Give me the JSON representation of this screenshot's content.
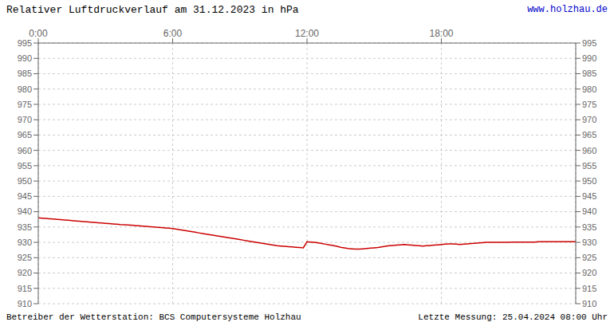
{
  "chart_data": {
    "type": "line",
    "title": "Relativer Luftdruckverlauf am 31.12.2023 in hPa",
    "annotations": [
      "www.holzhau.de",
      "Betreiber der Wetterstation: BCS Computersysteme Holzhau",
      "Letzte Messung: 25.04.2024 08:00 Uhr"
    ],
    "x": [
      0,
      10,
      20,
      30,
      40,
      50,
      60,
      70,
      80,
      90,
      100,
      110,
      120,
      130,
      140,
      150,
      160,
      170,
      180,
      190,
      200,
      210,
      220,
      230,
      240,
      250,
      260,
      270,
      280,
      290,
      300,
      310,
      320,
      330,
      340,
      350,
      360,
      370,
      380,
      390,
      400,
      410,
      420,
      430,
      440,
      450,
      460,
      470,
      480,
      490,
      500,
      510,
      520,
      530,
      540,
      550,
      560,
      570,
      580,
      590,
      600,
      610,
      620,
      630,
      640,
      650,
      660,
      670,
      680,
      690,
      700,
      710,
      720,
      730,
      740,
      750,
      760,
      770,
      780,
      790,
      800,
      810,
      820,
      830,
      840,
      850,
      860,
      870,
      880,
      890,
      900,
      910,
      920,
      930,
      940,
      950,
      960,
      970,
      980,
      990,
      1000,
      1010,
      1020,
      1030,
      1040,
      1050,
      1060,
      1070,
      1080,
      1090,
      1100,
      1110,
      1120,
      1130,
      1140,
      1150,
      1160,
      1170,
      1180,
      1190,
      1200,
      1210,
      1220,
      1230,
      1240,
      1250,
      1260,
      1270,
      1280,
      1290,
      1300,
      1310,
      1320,
      1330,
      1340,
      1350,
      1360,
      1370,
      1380,
      1390,
      1400,
      1410,
      1420,
      1430,
      1440
    ],
    "values": [
      938.0,
      937.9,
      937.8,
      937.7,
      937.6,
      937.5,
      937.4,
      937.3,
      937.2,
      937.1,
      937.0,
      936.9,
      936.8,
      936.7,
      936.6,
      936.5,
      936.4,
      936.3,
      936.2,
      936.1,
      936.0,
      935.9,
      935.8,
      935.75,
      935.7,
      935.6,
      935.5,
      935.4,
      935.3,
      935.2,
      935.1,
      935.0,
      934.9,
      934.8,
      934.7,
      934.6,
      934.5,
      934.3,
      934.1,
      933.9,
      933.7,
      933.5,
      933.3,
      933.1,
      932.9,
      932.7,
      932.5,
      932.3,
      932.1,
      931.9,
      931.7,
      931.5,
      931.3,
      931.1,
      930.9,
      930.7,
      930.5,
      930.3,
      930.1,
      929.9,
      929.7,
      929.5,
      929.3,
      929.1,
      928.9,
      928.8,
      928.7,
      928.6,
      928.5,
      928.4,
      928.3,
      928.2,
      930.2,
      930.1,
      930.0,
      929.8,
      929.6,
      929.4,
      929.2,
      929.0,
      928.7,
      928.4,
      928.2,
      928.0,
      927.9,
      927.8,
      927.8,
      927.9,
      928.0,
      928.1,
      928.2,
      928.3,
      928.5,
      928.7,
      928.9,
      929.0,
      929.1,
      929.2,
      929.3,
      929.2,
      929.1,
      929.0,
      928.9,
      928.8,
      928.9,
      929.0,
      929.1,
      929.2,
      929.3,
      929.4,
      929.5,
      929.5,
      929.4,
      929.3,
      929.4,
      929.5,
      929.6,
      929.7,
      929.8,
      929.9,
      930.0,
      930.0,
      930.0,
      930.0,
      930.0,
      930.0,
      930.0,
      930.1,
      930.1,
      930.1,
      930.1,
      930.1,
      930.1,
      930.1,
      930.2,
      930.2,
      930.2,
      930.2,
      930.2,
      930.2,
      930.2,
      930.2,
      930.2,
      930.2,
      930.2
    ],
    "color": "#cc0000",
    "xlim": [
      0,
      1440
    ],
    "xticks": [
      {
        "value": 0,
        "label": "0:00"
      },
      {
        "value": 360,
        "label": "6:00"
      },
      {
        "value": 720,
        "label": "12:00"
      },
      {
        "value": 1080,
        "label": "18:00"
      }
    ],
    "ylim": [
      910,
      995
    ],
    "yticks": [
      910,
      915,
      920,
      925,
      930,
      935,
      940,
      945,
      950,
      955,
      960,
      965,
      970,
      975,
      980,
      985,
      990,
      995
    ],
    "y2lim": [
      910,
      995
    ],
    "y2ticks": [
      910,
      915,
      920,
      925,
      930,
      935,
      940,
      945,
      950,
      955,
      960,
      965,
      970,
      975,
      980,
      985,
      990,
      995
    ],
    "grid": true
  }
}
